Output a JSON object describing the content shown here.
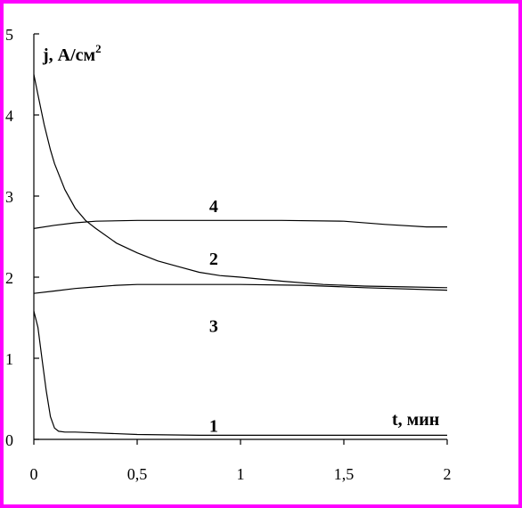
{
  "chart_data": {
    "type": "line",
    "title": "",
    "xlabel": "t, мин",
    "ylabel": "j, А/см",
    "ylabel_superscript": "2",
    "xlim": [
      0,
      2
    ],
    "ylim": [
      0,
      5
    ],
    "x_ticks": [
      0,
      0.5,
      1,
      1.5,
      2
    ],
    "x_tick_labels": [
      "0",
      "0,5",
      "1",
      "1,5",
      "2"
    ],
    "y_ticks": [
      0,
      1,
      2,
      3,
      4,
      5
    ],
    "y_tick_labels": [
      "0",
      "1",
      "2",
      "3",
      "4",
      "5"
    ],
    "grid": false,
    "legend": "none",
    "colors": {
      "frame": "#ff00ff",
      "line": "#000000"
    },
    "series": [
      {
        "label": "1",
        "label_at": [
          0.87,
          0.17
        ],
        "x": [
          0,
          0.02,
          0.04,
          0.06,
          0.08,
          0.1,
          0.12,
          0.15,
          0.2,
          0.3,
          0.5,
          0.8,
          1.0,
          1.5,
          2.0
        ],
        "y": [
          1.58,
          1.38,
          0.98,
          0.6,
          0.28,
          0.14,
          0.1,
          0.09,
          0.09,
          0.08,
          0.06,
          0.05,
          0.05,
          0.05,
          0.05
        ]
      },
      {
        "label": "2",
        "label_at": [
          0.87,
          2.23
        ],
        "x": [
          0,
          0.02,
          0.05,
          0.08,
          0.1,
          0.15,
          0.2,
          0.25,
          0.3,
          0.4,
          0.5,
          0.6,
          0.7,
          0.8,
          0.9,
          1.0,
          1.2,
          1.4,
          1.6,
          1.8,
          2.0
        ],
        "y": [
          4.5,
          4.25,
          3.88,
          3.57,
          3.4,
          3.08,
          2.85,
          2.7,
          2.6,
          2.42,
          2.3,
          2.2,
          2.13,
          2.06,
          2.02,
          2.0,
          1.95,
          1.91,
          1.89,
          1.88,
          1.87
        ]
      },
      {
        "label": "3",
        "label_at": [
          0.87,
          1.4
        ],
        "x": [
          0,
          0.1,
          0.2,
          0.3,
          0.4,
          0.5,
          0.7,
          1.0,
          1.3,
          1.6,
          2.0
        ],
        "y": [
          1.8,
          1.83,
          1.86,
          1.88,
          1.9,
          1.91,
          1.91,
          1.91,
          1.9,
          1.87,
          1.84
        ]
      },
      {
        "label": "4",
        "label_at": [
          0.87,
          2.88
        ],
        "x": [
          0,
          0.1,
          0.2,
          0.3,
          0.5,
          0.7,
          1.0,
          1.2,
          1.5,
          1.7,
          1.9,
          2.0
        ],
        "y": [
          2.6,
          2.64,
          2.67,
          2.69,
          2.7,
          2.7,
          2.7,
          2.7,
          2.69,
          2.65,
          2.62,
          2.62
        ]
      }
    ]
  }
}
